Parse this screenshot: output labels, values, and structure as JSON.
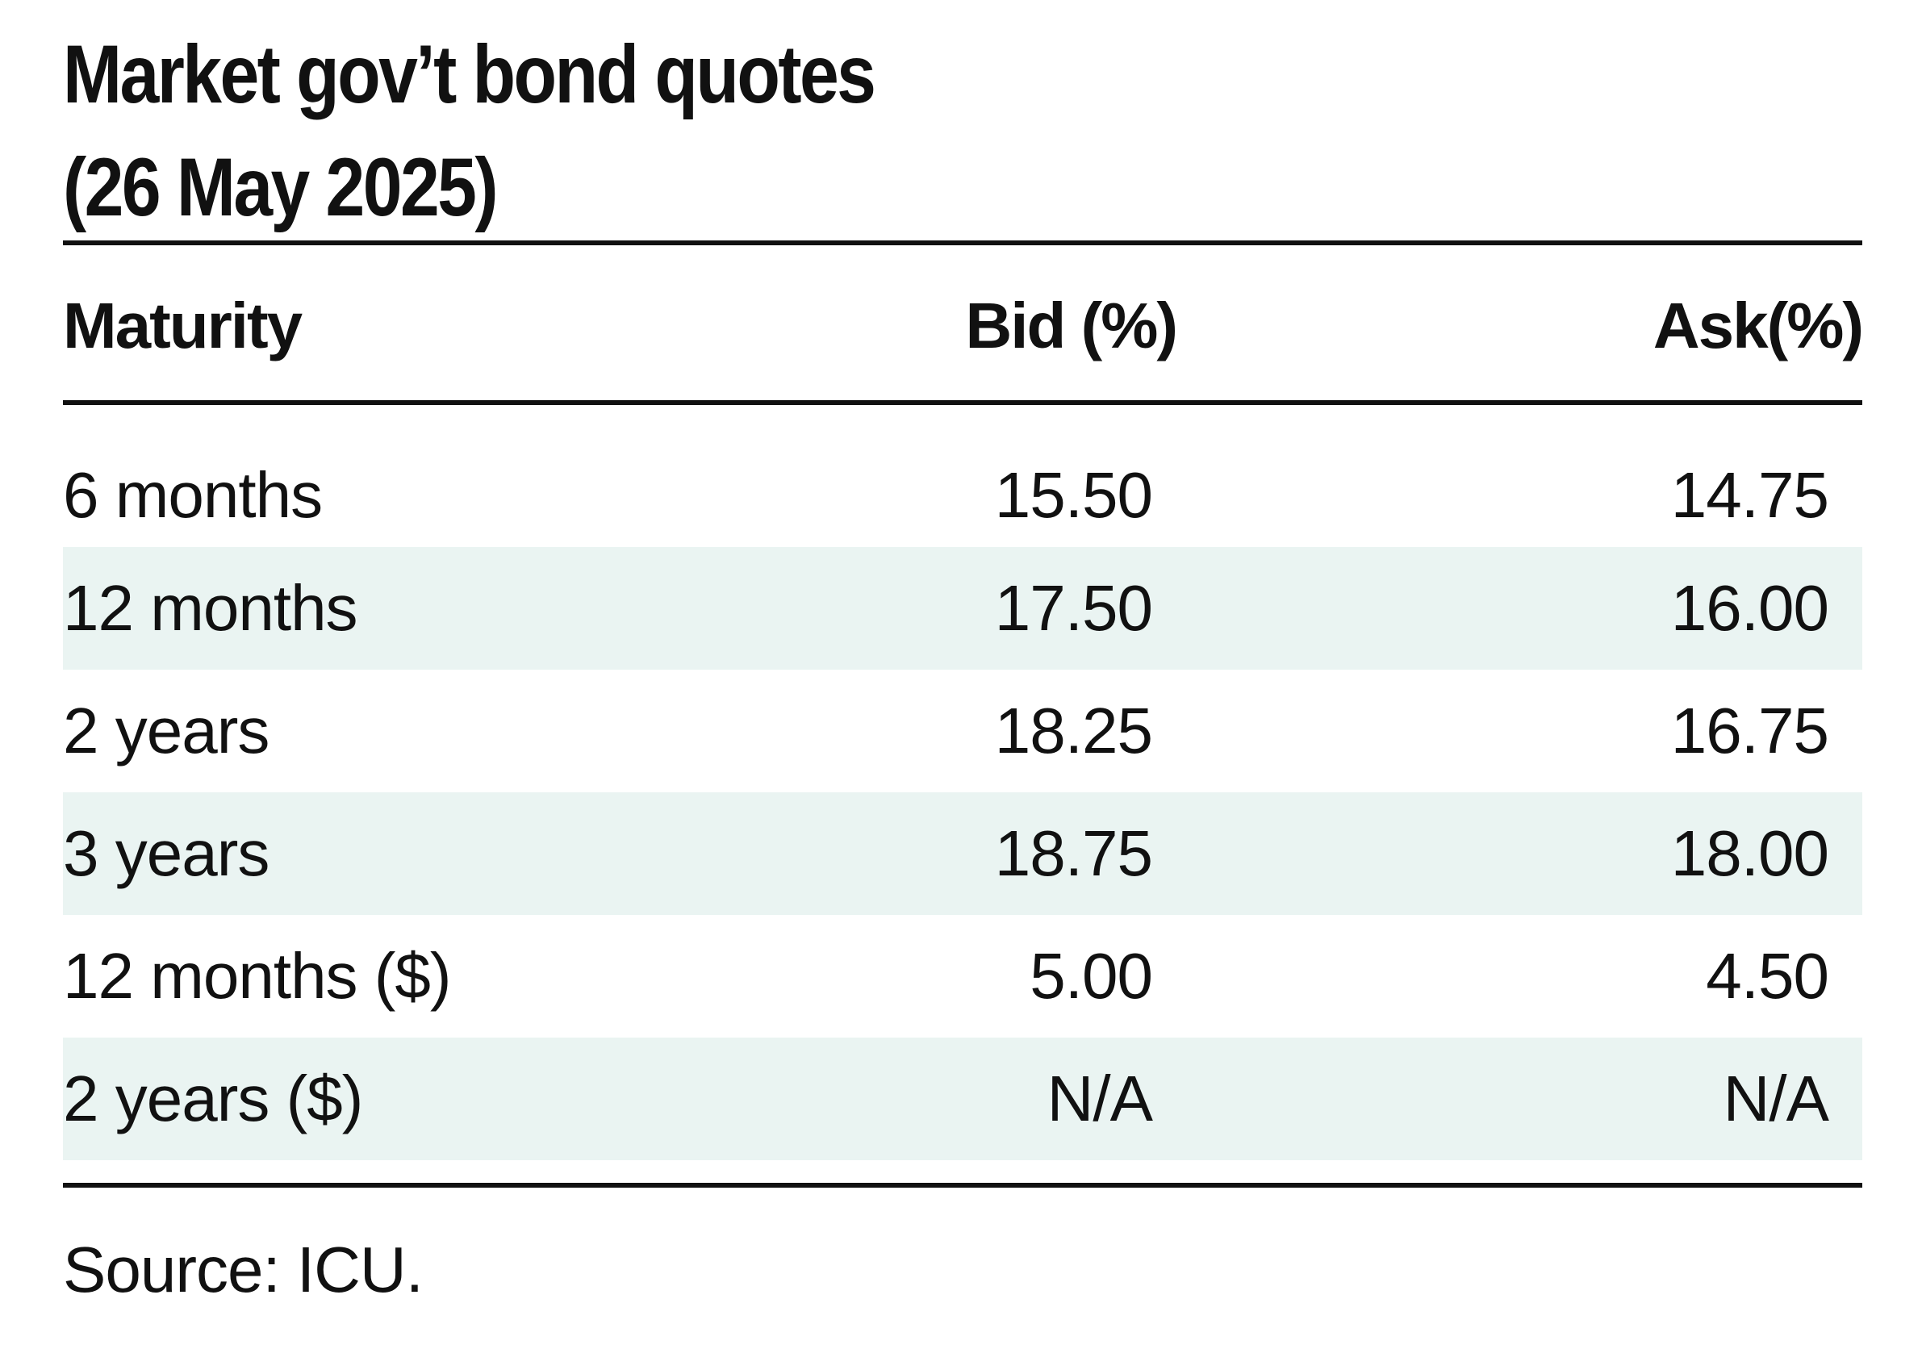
{
  "title_line1": "Market gov’t bond quotes",
  "title_line2": "(26 May 2025)",
  "colors": {
    "shaded_row": "#eaf4f2",
    "rule": "#111111",
    "text": "#111111"
  },
  "chart_data": {
    "type": "table",
    "columns": [
      "Maturity",
      "Bid (%)",
      "Ask(%)"
    ],
    "rows": [
      {
        "maturity": "6 months",
        "bid": "15.50",
        "ask": "14.75"
      },
      {
        "maturity": "12 months",
        "bid": "17.50",
        "ask": "16.00"
      },
      {
        "maturity": "2 years",
        "bid": "18.25",
        "ask": "16.75"
      },
      {
        "maturity": "3 years",
        "bid": "18.75",
        "ask": "18.00"
      },
      {
        "maturity": "12 months ($)",
        "bid": "5.00",
        "ask": "4.50"
      },
      {
        "maturity": "2 years ($)",
        "bid": "N/A",
        "ask": "N/A"
      }
    ]
  },
  "source": "Source: ICU."
}
